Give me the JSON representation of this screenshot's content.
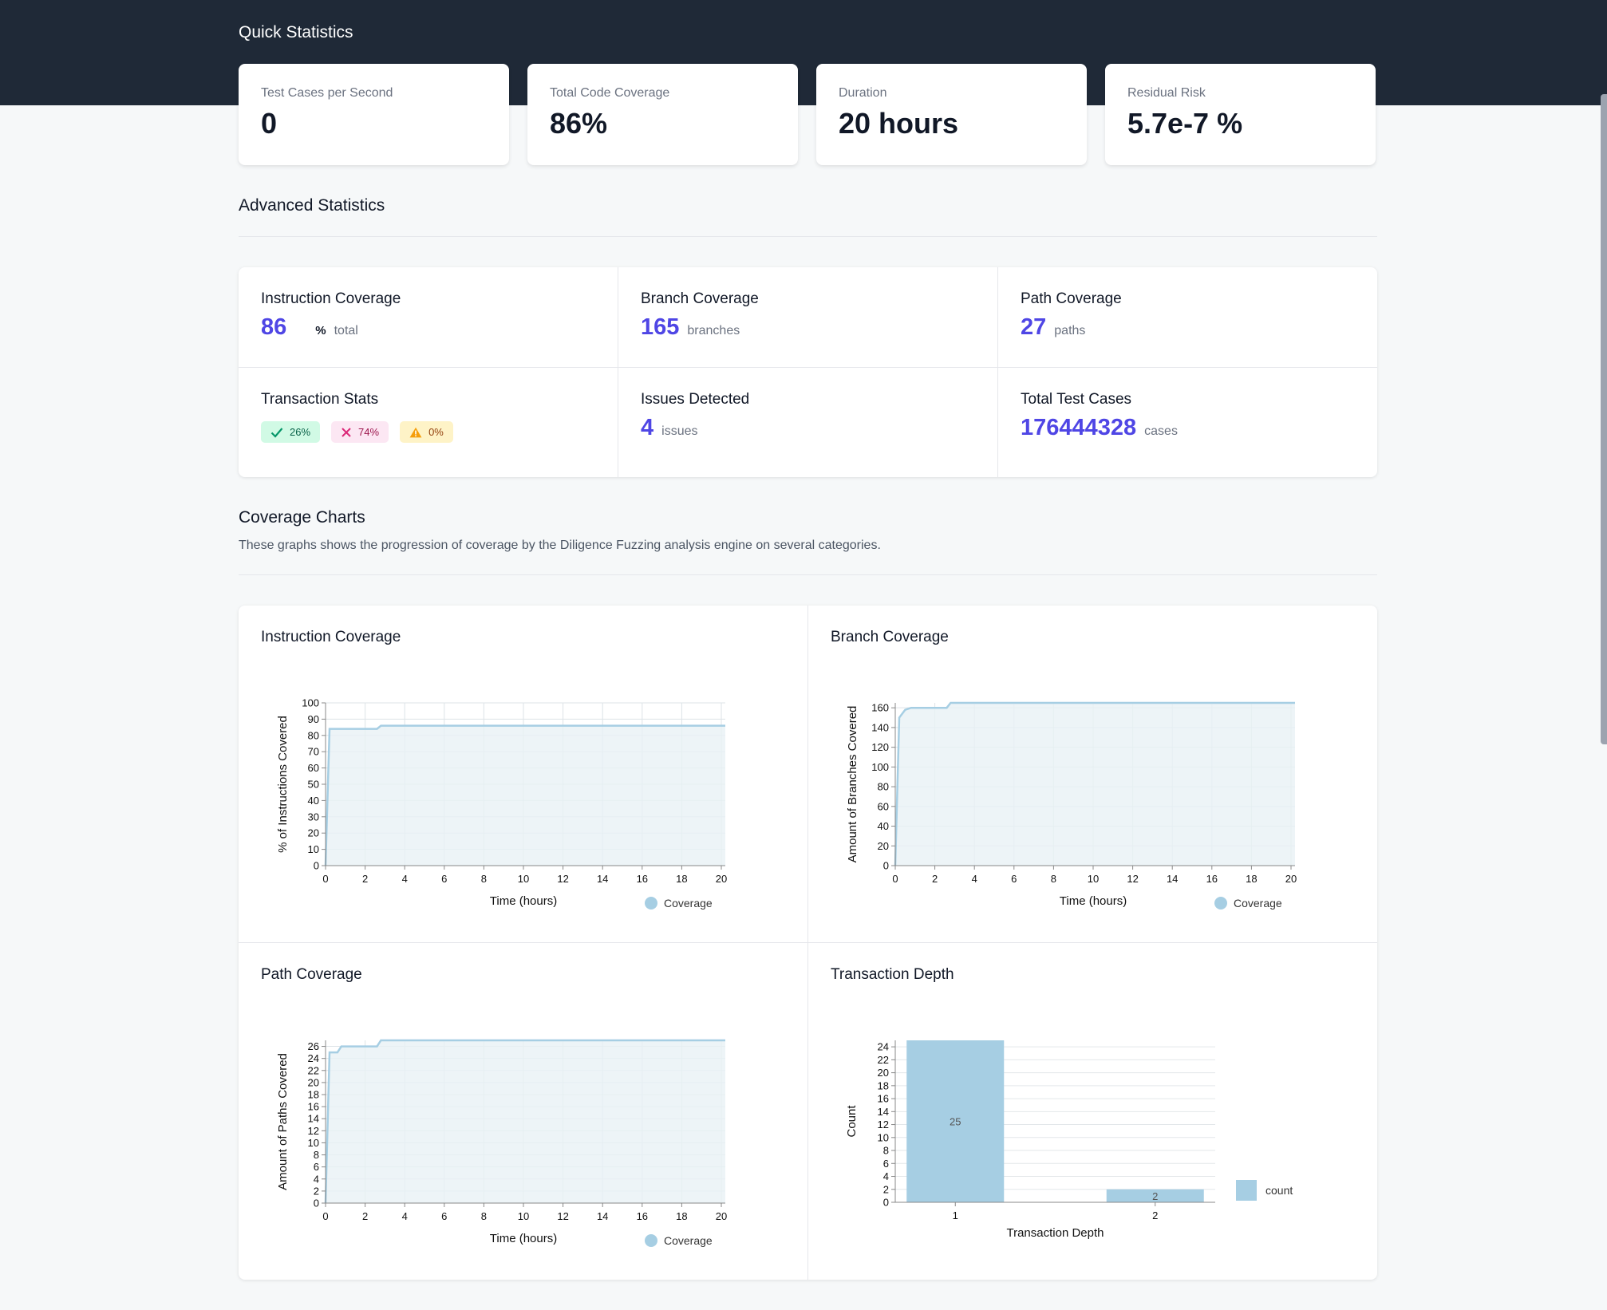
{
  "quick": {
    "title": "Quick Statistics",
    "cards": [
      {
        "label": "Test Cases per Second",
        "value": "0"
      },
      {
        "label": "Total Code Coverage",
        "value": "86%"
      },
      {
        "label": "Duration",
        "value": "20 hours"
      },
      {
        "label": "Residual Risk",
        "value": "5.7e-7 %"
      }
    ]
  },
  "advanced": {
    "title": "Advanced Statistics",
    "instruction": {
      "label": "Instruction Coverage",
      "value": "86",
      "pct": "%",
      "unit": "total"
    },
    "branch": {
      "label": "Branch Coverage",
      "value": "165",
      "unit": "branches"
    },
    "path": {
      "label": "Path Coverage",
      "value": "27",
      "unit": "paths"
    },
    "transactions": {
      "label": "Transaction Stats",
      "ok": "26%",
      "fail": "74%",
      "warn": "0%"
    },
    "issues": {
      "label": "Issues Detected",
      "value": "4",
      "unit": "issues"
    },
    "tests": {
      "label": "Total Test Cases",
      "value": "176444328",
      "unit": "cases"
    }
  },
  "coverage": {
    "title": "Coverage Charts",
    "description": "These graphs shows the progression of coverage by the Diligence Fuzzing analysis engine on several categories."
  },
  "colors": {
    "accent": "#4f46e5",
    "chart_line": "#a6cee3",
    "chart_fill": "#e8f1f5",
    "header": "#1f2937"
  },
  "icons": {
    "ok": "check-icon",
    "fail": "x-icon",
    "warn": "warning-triangle-icon"
  },
  "chart_data": [
    {
      "type": "area",
      "title": "Instruction Coverage",
      "xlabel": "Time (hours)",
      "ylabel": "% of Instructions Covered",
      "xlim": [
        0,
        20
      ],
      "ylim": [
        0,
        100
      ],
      "xticks": [
        0,
        2,
        4,
        6,
        8,
        10,
        12,
        14,
        16,
        18,
        20
      ],
      "yticks": [
        0,
        10,
        20,
        30,
        40,
        50,
        60,
        70,
        80,
        90,
        100
      ],
      "grid": true,
      "legend": "bottom-right",
      "series": [
        {
          "name": "Coverage",
          "x": [
            0,
            0.2,
            2.6,
            2.8,
            20.2
          ],
          "y": [
            0,
            84,
            84,
            86,
            86
          ]
        }
      ]
    },
    {
      "type": "area",
      "title": "Branch Coverage",
      "xlabel": "Time (hours)",
      "ylabel": "Amount of Branches Covered",
      "xlim": [
        0,
        20
      ],
      "ylim": [
        0,
        165
      ],
      "xticks": [
        0,
        2,
        4,
        6,
        8,
        10,
        12,
        14,
        16,
        18,
        20
      ],
      "yticks": [
        0,
        20,
        40,
        60,
        80,
        100,
        120,
        140,
        160
      ],
      "grid": true,
      "legend": "bottom-right",
      "series": [
        {
          "name": "Coverage",
          "x": [
            0,
            0.2,
            0.5,
            0.8,
            2.6,
            2.8,
            20.2
          ],
          "y": [
            0,
            150,
            158,
            160,
            160,
            165,
            165
          ]
        }
      ]
    },
    {
      "type": "area",
      "title": "Path Coverage",
      "xlabel": "Time (hours)",
      "ylabel": "Amount of Paths Covered",
      "xlim": [
        0,
        20
      ],
      "ylim": [
        0,
        27
      ],
      "xticks": [
        0,
        2,
        4,
        6,
        8,
        10,
        12,
        14,
        16,
        18,
        20
      ],
      "yticks": [
        0,
        2,
        4,
        6,
        8,
        10,
        12,
        14,
        16,
        18,
        20,
        22,
        24,
        26
      ],
      "grid": true,
      "legend": "bottom-right",
      "series": [
        {
          "name": "Coverage",
          "x": [
            0,
            0.2,
            0.6,
            0.8,
            1.0,
            2.6,
            2.8,
            20.2
          ],
          "y": [
            0,
            25,
            25,
            26,
            26,
            26,
            27,
            27
          ]
        }
      ]
    },
    {
      "type": "bar",
      "title": "Transaction Depth",
      "xlabel": "Transaction Depth",
      "ylabel": "Count",
      "categories": [
        "1",
        "2"
      ],
      "ylim": [
        0,
        25
      ],
      "yticks": [
        0,
        2,
        4,
        6,
        8,
        10,
        12,
        14,
        16,
        18,
        20,
        22,
        24
      ],
      "grid": true,
      "legend": "right",
      "series": [
        {
          "name": "count",
          "values": [
            25,
            2
          ]
        }
      ]
    }
  ]
}
